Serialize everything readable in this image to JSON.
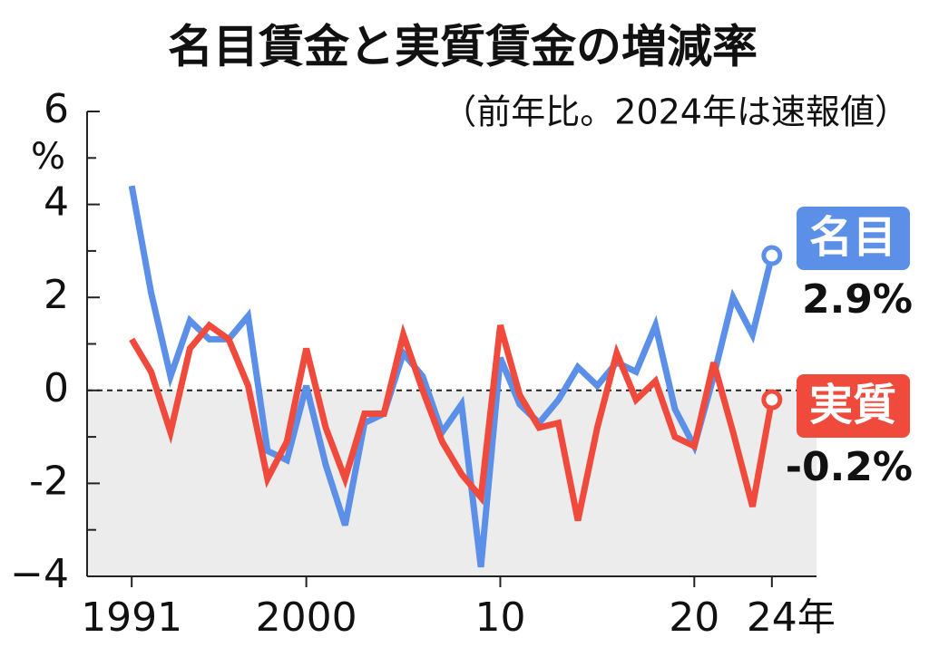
{
  "chart_data": {
    "type": "line",
    "title": "名目賃金と実質賃金の増減率",
    "subtitle": "（前年比。2024年は速報値）",
    "y_unit": "%",
    "x_unit": "年",
    "x": [
      1991,
      1992,
      1993,
      1994,
      1995,
      1996,
      1997,
      1998,
      1999,
      2000,
      2001,
      2002,
      2003,
      2004,
      2005,
      2006,
      2007,
      2008,
      2009,
      2010,
      2011,
      2012,
      2013,
      2014,
      2015,
      2016,
      2017,
      2018,
      2019,
      2020,
      2021,
      2022,
      2023,
      2024
    ],
    "xlim": [
      1988.7,
      2026.3
    ],
    "xticks": [
      {
        "value": 1991,
        "label": "1991"
      },
      {
        "value": 2000,
        "label": "2000"
      },
      {
        "value": 2010,
        "label": "10"
      },
      {
        "value": 2020,
        "label": "20"
      },
      {
        "value": 2024,
        "label": "24"
      }
    ],
    "ylim": [
      -4,
      6
    ],
    "yticks": [
      {
        "value": -4,
        "label": "−4"
      },
      {
        "value": -2,
        "label": "-2"
      },
      0,
      2,
      4,
      6
    ],
    "minor_yticks": [
      -3,
      -1,
      1,
      3,
      5
    ],
    "negative_shading": true,
    "series": [
      {
        "name": "名目",
        "color": "#5b8fe8",
        "values": [
          4.4,
          2.1,
          0.3,
          1.5,
          1.1,
          1.1,
          1.6,
          -1.3,
          -1.5,
          0.1,
          -1.6,
          -2.9,
          -0.7,
          -0.5,
          0.8,
          0.3,
          -0.9,
          -0.3,
          -3.8,
          0.7,
          -0.3,
          -0.7,
          -0.2,
          0.5,
          0.1,
          0.6,
          0.4,
          1.4,
          -0.4,
          -1.2,
          0.3,
          2.0,
          1.2,
          2.9
        ],
        "value_labels": [
          null,
          null,
          null,
          null,
          null,
          null,
          null,
          null,
          null,
          null,
          null,
          null,
          null,
          null,
          null,
          null,
          null,
          null,
          null,
          null,
          null,
          null,
          null,
          null,
          null,
          null,
          null,
          null,
          null,
          null,
          null,
          null,
          null,
          "2.9%"
        ]
      },
      {
        "name": "実質",
        "color": "#f04a3c",
        "values": [
          1.1,
          0.4,
          -0.9,
          0.9,
          1.4,
          1.1,
          0.1,
          -1.9,
          -1.1,
          0.9,
          -0.8,
          -1.9,
          -0.5,
          -0.5,
          1.2,
          0.0,
          -1.1,
          -1.8,
          -2.3,
          1.4,
          -0.1,
          -0.8,
          -0.7,
          -2.8,
          -0.8,
          0.8,
          -0.2,
          0.2,
          -1.0,
          -1.2,
          0.6,
          -0.9,
          -2.5,
          -0.2
        ],
        "value_labels": [
          null,
          null,
          null,
          null,
          null,
          null,
          null,
          null,
          null,
          null,
          null,
          null,
          null,
          null,
          null,
          null,
          null,
          null,
          null,
          null,
          null,
          null,
          null,
          null,
          null,
          null,
          null,
          null,
          null,
          null,
          null,
          null,
          null,
          "-0.2%"
        ]
      }
    ]
  }
}
